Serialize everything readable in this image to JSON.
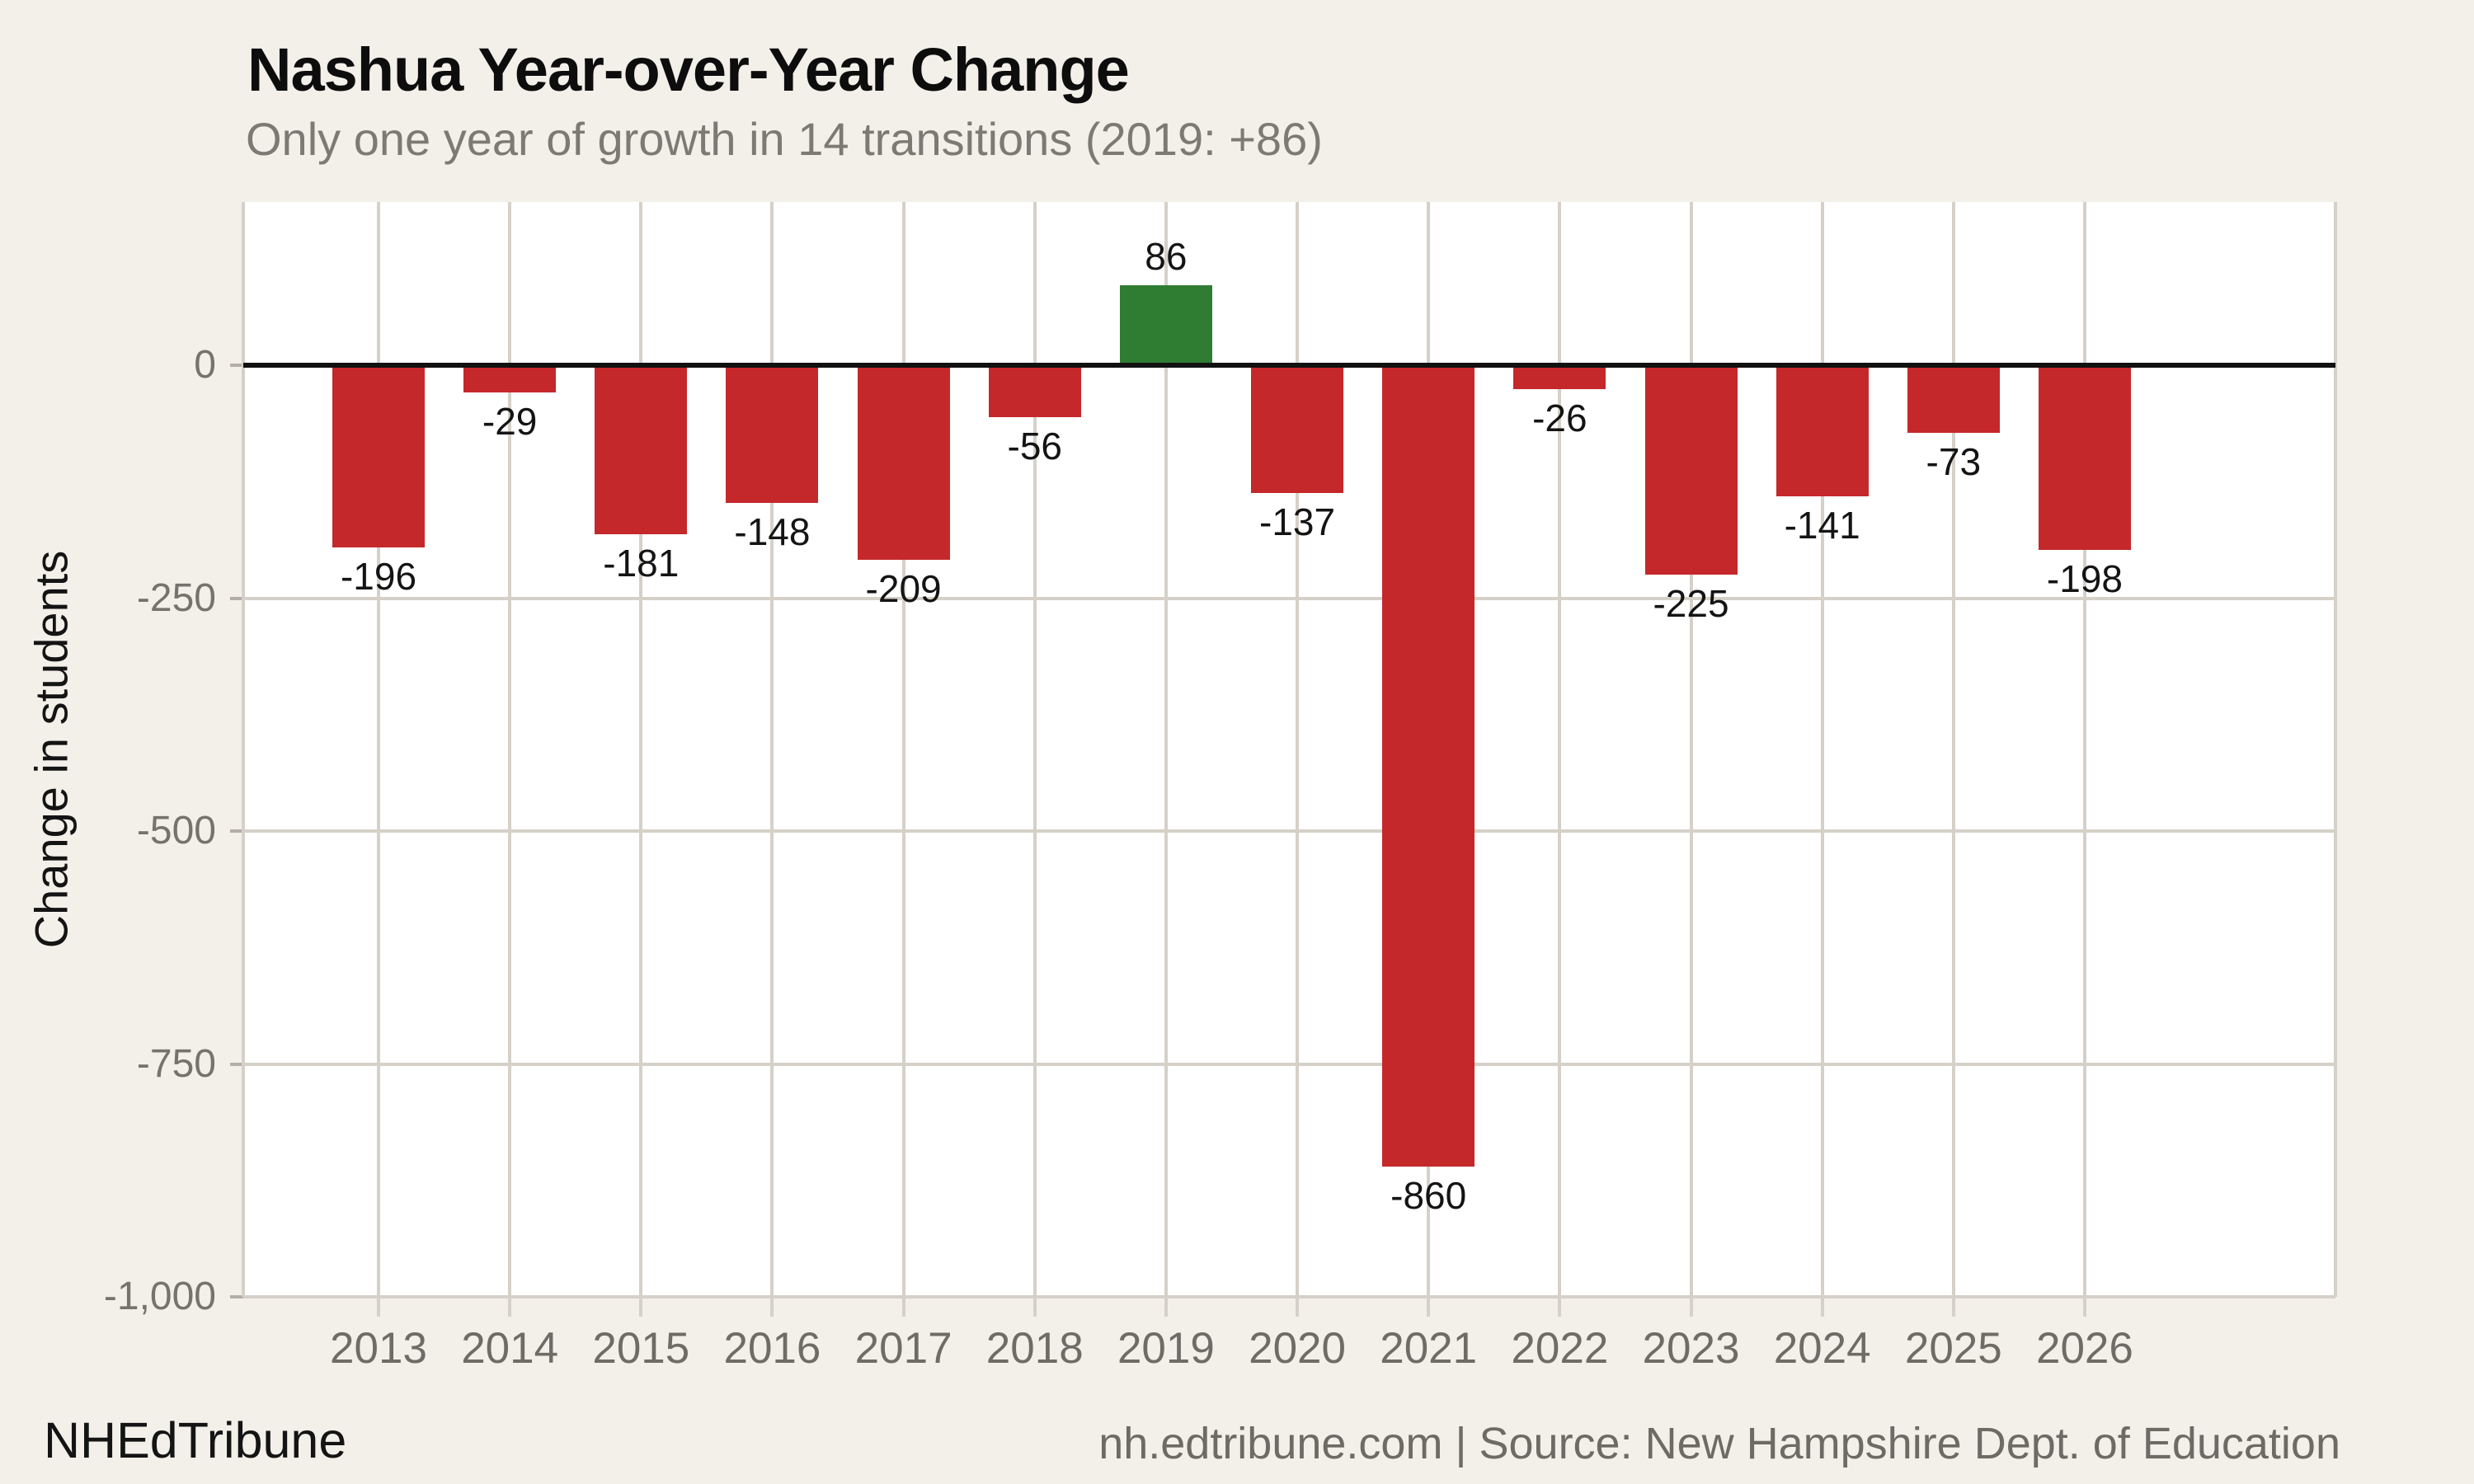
{
  "chart_data": {
    "type": "bar",
    "title": "Nashua Year-over-Year Change",
    "subtitle": "Only one year of growth in 14 transitions (2019: +86)",
    "xlabel": "",
    "ylabel": "Change in students",
    "categories": [
      "2013",
      "2014",
      "2015",
      "2016",
      "2017",
      "2018",
      "2019",
      "2020",
      "2021",
      "2022",
      "2023",
      "2024",
      "2025",
      "2026"
    ],
    "values": [
      -196,
      -29,
      -181,
      -148,
      -209,
      -56,
      86,
      -137,
      -860,
      -26,
      -225,
      -141,
      -73,
      -198
    ],
    "bar_labels": [
      "-196",
      "-29",
      "-181",
      "-148",
      "-209",
      "-56",
      "86",
      "-137",
      "-860",
      "-26",
      "-225",
      "-141",
      "-73",
      "-198"
    ],
    "ylim": [
      -1000,
      175
    ],
    "yticks": {
      "values": [
        0,
        -250,
        -500,
        -750,
        -1000
      ],
      "labels": [
        "0",
        "-250",
        "-500",
        "-750",
        "-1,000"
      ]
    },
    "grid": true,
    "legend": false,
    "zero_line": true,
    "colors": {
      "positive": "#2e7d33",
      "negative": "#c5282a",
      "background": "#f3f0ea",
      "plot_background": "#ffffff",
      "gridline": "#d5d1c8",
      "tick": "#b3afa6",
      "zero_line": "#111111"
    }
  },
  "footer": {
    "brand": "NHEdTribune",
    "source": "nh.edtribune.com | Source: New Hampshire Dept. of Education"
  }
}
